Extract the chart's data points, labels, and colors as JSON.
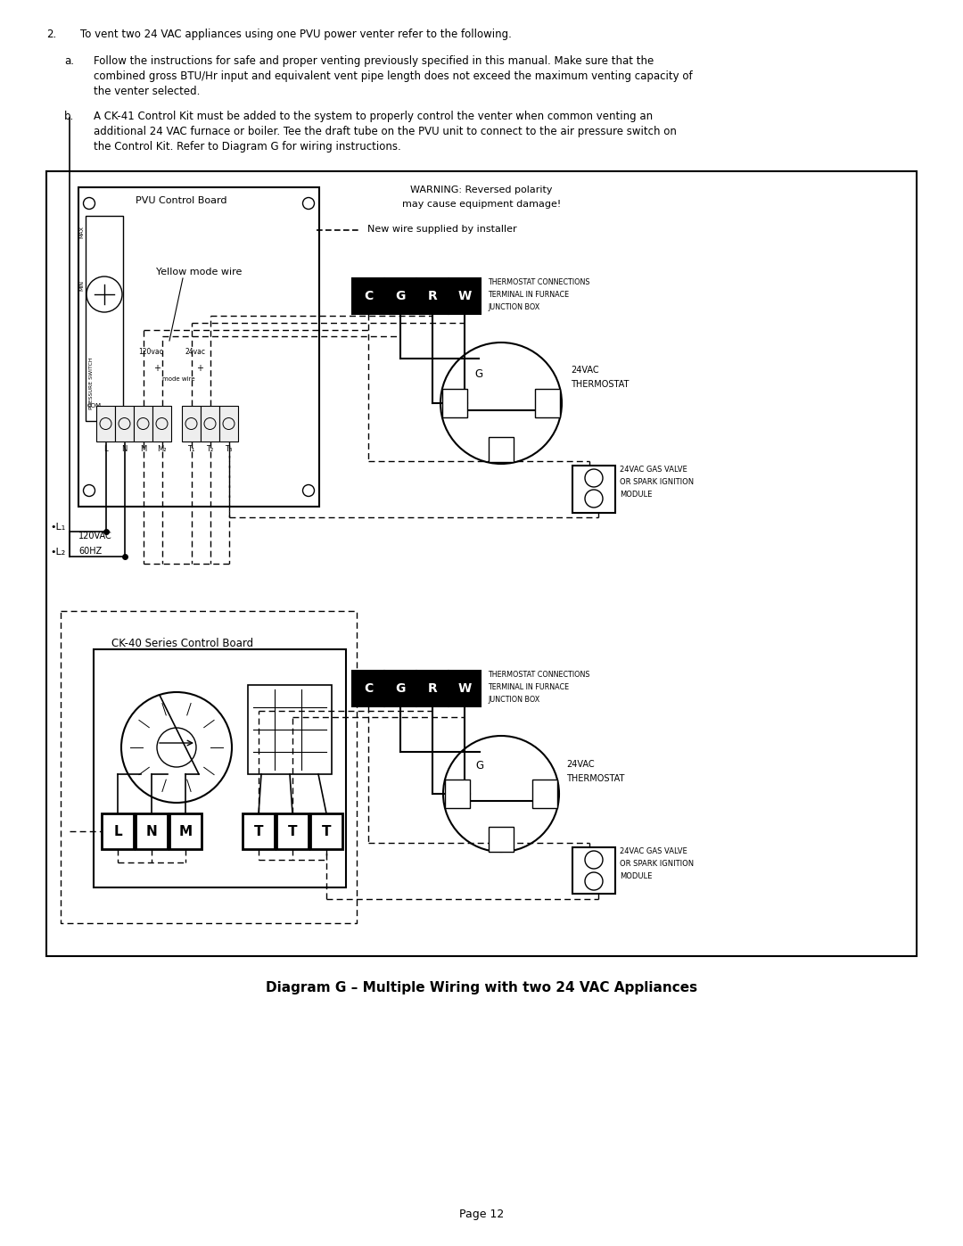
{
  "page_width": 10.8,
  "page_height": 13.97,
  "bg_color": "#ffffff",
  "line_color": "#000000",
  "title_text": "Diagram G – Multiple Wiring with two 24 VAC Appliances",
  "page_number": "Page 12",
  "warning_line1": "WARNING: Reversed polarity",
  "warning_line2": "may cause equipment damage!",
  "new_wire_text": "New wire supplied by installer",
  "pvu_board_label": "PVU Control Board",
  "yellow_mode_wire": "Yellow mode wire",
  "ck40_board_label": "CK-40 Series Control Board",
  "l1_label": "•L₁",
  "l2_label": "•L₂",
  "voltage_label1": "120VAC",
  "voltage_label2": "60HZ"
}
